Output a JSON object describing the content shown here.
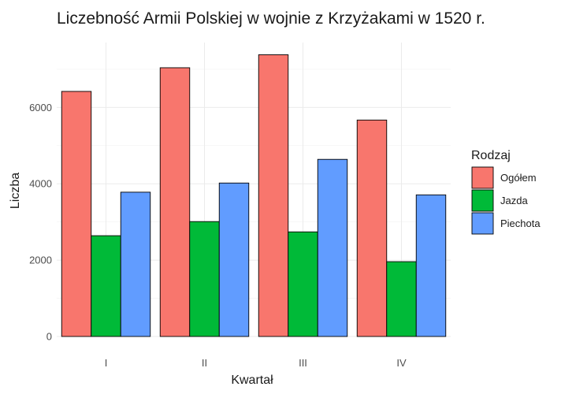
{
  "chart_data": {
    "type": "bar",
    "title": "Liczebność Armii Polskiej w wojnie z Krzyżakami w 1520 r.",
    "xlabel": "Kwartał",
    "ylabel": "Liczba",
    "categories": [
      "I",
      "II",
      "III",
      "IV"
    ],
    "series": [
      {
        "name": "Ogółem",
        "color": "#F8766D",
        "values": [
          6420,
          7040,
          7380,
          5670
        ]
      },
      {
        "name": "Jazda",
        "color": "#00BA38",
        "values": [
          2640,
          3010,
          2740,
          1960
        ]
      },
      {
        "name": "Piechota",
        "color": "#619CFF",
        "values": [
          3780,
          4020,
          4640,
          3710
        ]
      }
    ],
    "ylim": [
      0,
      7700
    ],
    "yticks": [
      0,
      2000,
      4000,
      6000
    ],
    "legend": {
      "title": "Rodzaj",
      "position": "right"
    },
    "grid": true
  }
}
